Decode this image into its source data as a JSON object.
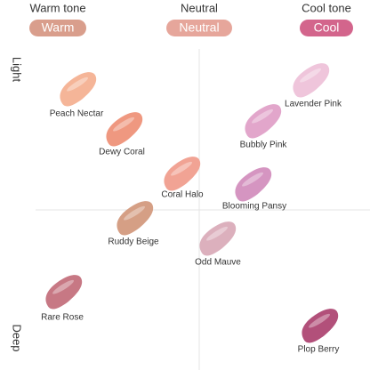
{
  "header": {
    "columns": [
      {
        "title": "Warm tone",
        "pill": "Warm",
        "color": "#d99e8c"
      },
      {
        "title": "Neutral",
        "pill": "Neutral",
        "color": "#e6a69b"
      },
      {
        "title": "Cool tone",
        "pill": "Cool",
        "color": "#d3658c"
      }
    ]
  },
  "axis": {
    "top": "Light",
    "bottom": "Deep"
  },
  "swatches": [
    {
      "label": "Peach Nectar",
      "color": "#f5b598"
    },
    {
      "label": "Dewy Coral",
      "color": "#ef9880"
    },
    {
      "label": "Coral Halo",
      "color": "#f1a394"
    },
    {
      "label": "Ruddy Beige",
      "color": "#d59f85"
    },
    {
      "label": "Rare Rose",
      "color": "#c77884"
    },
    {
      "label": "Lavender Pink",
      "color": "#efc5db"
    },
    {
      "label": "Bubbly Pink",
      "color": "#e2a6cb"
    },
    {
      "label": "Blooming Pansy",
      "color": "#d595c1"
    },
    {
      "label": "Odd Mauve",
      "color": "#dcb0bd"
    },
    {
      "label": "Plop Berry",
      "color": "#b2507a"
    }
  ]
}
